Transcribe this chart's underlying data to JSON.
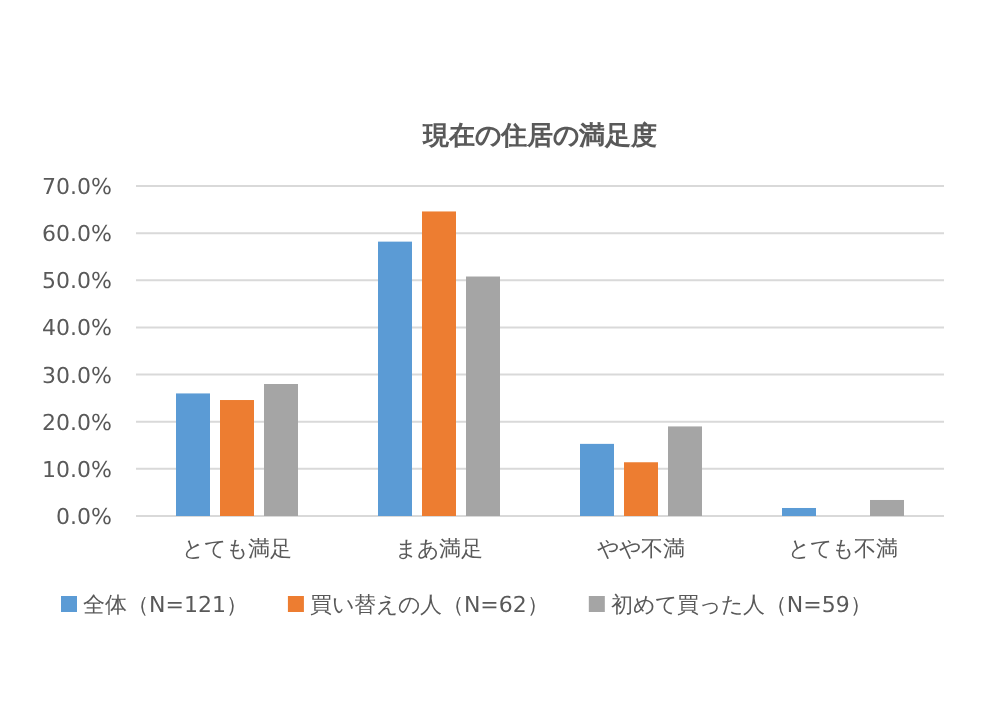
{
  "chart_data": {
    "type": "bar",
    "title": "現在の住居の満足度",
    "categories": [
      "とても満足",
      "まあ満足",
      "やや不満",
      "とても不満"
    ],
    "series": [
      {
        "name": "全体（N=121）",
        "color": "#5b9bd5",
        "values": [
          26.0,
          58.2,
          15.3,
          1.7
        ]
      },
      {
        "name": "買い替えの人（N=62）",
        "color": "#ed7d31",
        "values": [
          24.6,
          64.6,
          11.4,
          0
        ]
      },
      {
        "name": "初めて買った人（N=59）",
        "color": "#a5a5a5",
        "values": [
          28.0,
          50.8,
          19.0,
          3.4
        ]
      }
    ],
    "ylim": [
      0,
      70
    ],
    "yticks": [
      {
        "value": 0,
        "label": "0.0%"
      },
      {
        "value": 10,
        "label": "10.0%"
      },
      {
        "value": 20,
        "label": "20.0%"
      },
      {
        "value": 30,
        "label": "30.0%"
      },
      {
        "value": 40,
        "label": "40.0%"
      },
      {
        "value": 50,
        "label": "50.0%"
      },
      {
        "value": 60,
        "label": "60.0%"
      },
      {
        "value": 70,
        "label": "70.0%"
      }
    ],
    "grid": "y",
    "legend": "bottom"
  }
}
